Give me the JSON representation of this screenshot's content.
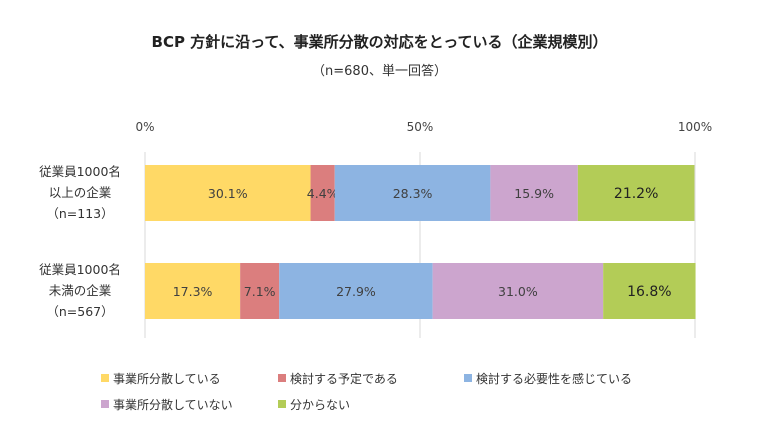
{
  "chart_data": {
    "type": "bar",
    "orientation": "horizontal",
    "stacked": true,
    "percent": true,
    "title": "BCP 方針に沿って、事業所分散の対応をとっている（企業規模別）",
    "subtitle": "（n=680、単一回答）",
    "xlim": [
      0,
      100
    ],
    "x_ticks": [
      "0%",
      "50%",
      "100%"
    ],
    "grid": true,
    "legend_position": "bottom",
    "categories": [
      {
        "lines": [
          "従業員1000名",
          "以上の企業",
          "（n=113）"
        ]
      },
      {
        "lines": [
          "従業員1000名",
          "未満の企業",
          "（n=567）"
        ]
      }
    ],
    "series": [
      {
        "name": "事業所分散している",
        "color": "#FFD966",
        "values": [
          30.1,
          17.3
        ],
        "labels": [
          "30.1%",
          "17.3%"
        ]
      },
      {
        "name": "検討する予定である",
        "color": "#DB7E7E",
        "values": [
          4.4,
          7.1
        ],
        "labels": [
          "4.4%",
          "7.1%"
        ]
      },
      {
        "name": "検討する必要性を感じている",
        "color": "#8DB4E2",
        "values": [
          28.3,
          27.9
        ],
        "labels": [
          "28.3%",
          "27.9%"
        ]
      },
      {
        "name": "事業所分散していない",
        "color": "#CCA5CE",
        "values": [
          15.9,
          31.0
        ],
        "labels": [
          "15.9%",
          "31.0%"
        ]
      },
      {
        "name": "分からない",
        "color": "#B3CC57",
        "values": [
          21.2,
          16.8
        ],
        "labels": [
          "21.2%",
          "16.8%"
        ]
      }
    ]
  }
}
